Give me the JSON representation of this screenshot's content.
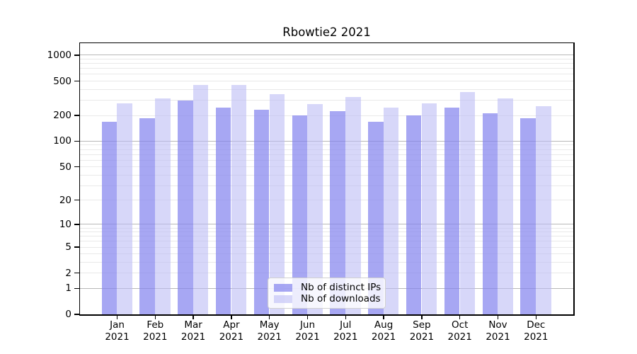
{
  "chart_data": {
    "type": "bar",
    "title": "Rbowtie2 2021",
    "x_year": "2021",
    "categories": [
      "Jan",
      "Feb",
      "Mar",
      "Apr",
      "May",
      "Jun",
      "Jul",
      "Aug",
      "Sep",
      "Oct",
      "Nov",
      "Dec"
    ],
    "series": [
      {
        "name": "Nb of distinct IPs",
        "color": "rgba(130,130,238,0.70)",
        "values": [
          170,
          185,
          298,
          247,
          233,
          199,
          226,
          170,
          199,
          246,
          210,
          184
        ]
      },
      {
        "name": "Nb of downloads",
        "color": "rgba(186,186,244,0.58)",
        "values": [
          276,
          315,
          450,
          450,
          355,
          272,
          330,
          248,
          278,
          374,
          314,
          257
        ]
      }
    ],
    "y_axis": {
      "scale": "log1p",
      "tick_values": [
        0,
        1,
        2,
        5,
        10,
        20,
        50,
        100,
        200,
        500,
        1000
      ],
      "major_gridlines": [
        1,
        10,
        100,
        1000
      ],
      "minor_gridlines": [
        2,
        3,
        4,
        5,
        6,
        7,
        8,
        9,
        20,
        30,
        40,
        50,
        60,
        70,
        80,
        90,
        200,
        300,
        400,
        500,
        600,
        700,
        800,
        900
      ]
    },
    "grid": true,
    "legend_position": "lower center"
  },
  "colors": {
    "bar_distinct_ips": "rgba(130,130,238,0.70)",
    "bar_downloads": "rgba(186,186,244,0.58)",
    "grid_major": "#b8b8b8",
    "grid_minor": "#e9e9e9",
    "axis": "#000000",
    "legend_border": "#d0d0d0"
  }
}
